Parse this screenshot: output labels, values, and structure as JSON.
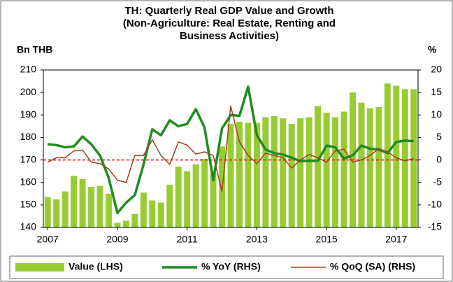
{
  "chart_data": {
    "type": "bar-line",
    "title": [
      "TH: Quarterly Real GDP Value and Growth",
      "(Non-Agriculture: Real Estate, Renting and",
      "Business Activities)"
    ],
    "y_label": "Bn THB",
    "y2_label": "%",
    "categories": [
      "2007",
      null,
      null,
      null,
      null,
      null,
      null,
      null,
      "2009",
      null,
      null,
      null,
      null,
      null,
      null,
      null,
      "2011",
      null,
      null,
      null,
      null,
      null,
      null,
      null,
      "2013",
      null,
      null,
      null,
      null,
      null,
      null,
      null,
      "2015",
      null,
      null,
      null,
      null,
      null,
      null,
      null,
      "2017",
      null,
      null
    ],
    "series": [
      {
        "name": "Value (LHS)",
        "kind": "bar",
        "color": "#99cc33",
        "values": [
          153.5,
          152.5,
          156,
          163,
          161.5,
          158,
          158.5,
          155,
          142,
          143,
          146,
          155.5,
          152,
          151,
          159,
          167,
          165,
          168,
          170.5,
          164,
          176,
          186,
          187,
          186.5,
          186.5,
          189,
          189.5,
          188.5,
          186,
          188.5,
          189,
          194,
          191,
          189,
          191.5,
          200,
          195.5,
          193,
          193.5,
          204,
          203,
          201.5,
          201.5
        ]
      },
      {
        "name": "% YoY (RHS)",
        "kind": "line",
        "axis": "y2",
        "color": "#1e8c1e",
        "values": [
          3.5,
          3.3,
          2.8,
          3,
          5.2,
          3.5,
          1,
          -4,
          -11.8,
          -9.5,
          -7.8,
          -1,
          6.8,
          5.5,
          8.8,
          7.5,
          8,
          11.3,
          7.2,
          -4.5,
          7,
          10,
          9.8,
          16.3,
          5.5,
          2.3,
          1.5,
          1.2,
          0.5,
          -0.3,
          -0.2,
          -0.2,
          3.2,
          2.8,
          0.3,
          1,
          3.2,
          2.5,
          2.3,
          1.5,
          4,
          4.3,
          4.2
        ]
      },
      {
        "name": "% QoQ (SA) (RHS)",
        "kind": "line",
        "axis": "y2",
        "color": "#a0401c",
        "values": [
          -0.5,
          0.5,
          0.5,
          2,
          2.2,
          -0.5,
          -0.8,
          -2,
          -4.5,
          -5,
          1,
          1,
          4.5,
          1,
          -1,
          4,
          3.3,
          1.3,
          1.8,
          1,
          -7,
          12,
          4,
          1,
          -0.8,
          1.5,
          1,
          0.5,
          -1.8,
          0,
          1.2,
          0.5,
          -0.5,
          2,
          2.4,
          -0.5,
          0,
          1,
          2.5,
          1.8,
          0.5,
          -0.2,
          0.3
        ]
      }
    ],
    "reference_line": {
      "value": 0,
      "axis": "y2",
      "color": "#ff0000"
    },
    "ylim": [
      140,
      210
    ],
    "yticks": [
      140,
      150,
      160,
      170,
      180,
      190,
      200,
      210
    ],
    "y2lim": [
      -15,
      20
    ],
    "y2ticks": [
      -15,
      -10,
      -5,
      0,
      5,
      10,
      15,
      20
    ]
  }
}
